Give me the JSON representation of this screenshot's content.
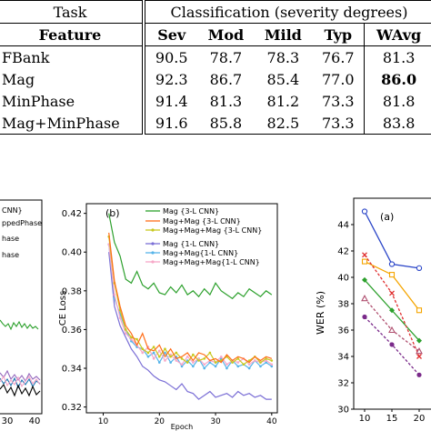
{
  "table": {
    "task_label": "Task",
    "task_header": "Classification (severity degrees)",
    "feature_label": "Feature",
    "columns": [
      "Sev",
      "Mod",
      "Mild",
      "Typ",
      "WAvg"
    ],
    "rows": [
      {
        "feature": "FBank",
        "values": [
          "90.5",
          "78.7",
          "78.3",
          "76.7",
          "81.3"
        ]
      },
      {
        "feature": "Mag",
        "values": [
          "92.3",
          "86.7",
          "85.4",
          "77.0",
          "86.0"
        ]
      },
      {
        "feature": "MinPhase",
        "values": [
          "91.4",
          "81.3",
          "81.2",
          "73.3",
          "81.8"
        ]
      },
      {
        "feature": "Mag+MinPhase",
        "values": [
          "91.6",
          "85.8",
          "82.5",
          "73.3",
          "83.8"
        ]
      }
    ]
  },
  "left_plot": {
    "legend": [
      "CNN}",
      "ppedPhase",
      "hase",
      "hase"
    ],
    "x_ticks": [
      "30",
      "40"
    ],
    "colors": {
      "green": "#2ca02c",
      "black": "#000000",
      "blue": "#1f77b4",
      "purple": "#9467bd",
      "pink": "#f4a3c6"
    }
  },
  "plot_b": {
    "label": "(b)",
    "xlabel": "Epoch",
    "ylabel": "CE Loss",
    "y_ticks": [
      "0.42",
      "0.40",
      "0.38",
      "0.36",
      "0.34",
      "0.32"
    ],
    "x_ticks": [
      "10",
      "20",
      "30",
      "40"
    ],
    "legend": [
      "Mag {3-L CNN}",
      "Mag+Mag {3-L CNN}",
      "Mag+Mag+Mag {3-L CNN}",
      "Mag {1-L CNN}",
      "Mag+Mag{1-L CNN}",
      "Mag+Mag+Mag{1-L CNN}"
    ],
    "colors": [
      "#2ca02c",
      "#ff6e1a",
      "#c8c820",
      "#7b6fd6",
      "#56b4e9",
      "#f7a8c8"
    ]
  },
  "plot_a": {
    "label": "(a)",
    "ylabel": "WER (%)",
    "y_ticks": [
      "44",
      "42",
      "40",
      "38",
      "36",
      "34",
      "32",
      "30"
    ],
    "x_ticks": [
      "10",
      "15",
      "20"
    ],
    "colors": [
      "#2a45c8",
      "#f5a500",
      "#2ca02c",
      "#e03030",
      "#b05070",
      "#7a2a8a"
    ]
  },
  "chart_data": [
    {
      "type": "line",
      "title": "(b)",
      "xlabel": "Epoch",
      "ylabel": "CE Loss",
      "ylim": [
        0.317,
        0.425
      ],
      "xlim": [
        7,
        41
      ],
      "grid": false,
      "legend_position": "top-right",
      "x": [
        11,
        12,
        13,
        14,
        15,
        16,
        17,
        18,
        19,
        20,
        21,
        22,
        23,
        24,
        25,
        26,
        27,
        28,
        29,
        30,
        31,
        32,
        33,
        34,
        35,
        36,
        37,
        38,
        39,
        40
      ],
      "series": [
        {
          "name": "Mag {3-L CNN}",
          "values": [
            0.42,
            0.405,
            0.398,
            0.386,
            0.384,
            0.39,
            0.383,
            0.381,
            0.384,
            0.379,
            0.378,
            0.382,
            0.379,
            0.383,
            0.378,
            0.38,
            0.377,
            0.381,
            0.378,
            0.384,
            0.38,
            0.378,
            0.376,
            0.379,
            0.377,
            0.381,
            0.379,
            0.377,
            0.38,
            0.378
          ]
        },
        {
          "name": "Mag+Mag {3-L CNN}",
          "values": [
            0.41,
            0.385,
            0.372,
            0.362,
            0.358,
            0.352,
            0.358,
            0.35,
            0.349,
            0.352,
            0.346,
            0.35,
            0.345,
            0.346,
            0.348,
            0.344,
            0.348,
            0.347,
            0.344,
            0.345,
            0.343,
            0.347,
            0.344,
            0.346,
            0.345,
            0.343,
            0.346,
            0.344,
            0.346,
            0.345
          ]
        },
        {
          "name": "Mag+Mag+Mag {3-L CNN}",
          "values": [
            0.408,
            0.384,
            0.37,
            0.36,
            0.356,
            0.355,
            0.35,
            0.348,
            0.351,
            0.346,
            0.35,
            0.346,
            0.348,
            0.345,
            0.343,
            0.347,
            0.344,
            0.345,
            0.348,
            0.343,
            0.344,
            0.346,
            0.343,
            0.345,
            0.342,
            0.344,
            0.346,
            0.343,
            0.345,
            0.344
          ]
        },
        {
          "name": "Mag {1-L CNN}",
          "values": [
            0.4,
            0.372,
            0.362,
            0.356,
            0.35,
            0.346,
            0.341,
            0.339,
            0.336,
            0.334,
            0.333,
            0.331,
            0.329,
            0.332,
            0.328,
            0.327,
            0.324,
            0.326,
            0.328,
            0.325,
            0.326,
            0.327,
            0.325,
            0.328,
            0.326,
            0.327,
            0.325,
            0.326,
            0.324,
            0.324
          ]
        },
        {
          "name": "Mag+Mag{1-L CNN}",
          "values": [
            0.404,
            0.376,
            0.368,
            0.36,
            0.354,
            0.351,
            0.35,
            0.346,
            0.348,
            0.343,
            0.348,
            0.343,
            0.346,
            0.341,
            0.344,
            0.341,
            0.345,
            0.34,
            0.343,
            0.341,
            0.345,
            0.34,
            0.344,
            0.341,
            0.342,
            0.34,
            0.344,
            0.341,
            0.343,
            0.341
          ]
        },
        {
          "name": "Mag+Mag+Mag{1-L CNN}",
          "values": [
            0.404,
            0.378,
            0.366,
            0.358,
            0.355,
            0.352,
            0.348,
            0.351,
            0.345,
            0.349,
            0.344,
            0.347,
            0.344,
            0.342,
            0.346,
            0.343,
            0.345,
            0.342,
            0.344,
            0.343,
            0.346,
            0.342,
            0.344,
            0.343,
            0.345,
            0.342,
            0.344,
            0.343,
            0.344,
            0.342
          ]
        }
      ]
    },
    {
      "type": "line",
      "title": "(a)",
      "ylabel": "WER (%)",
      "ylim": [
        30,
        46
      ],
      "xlim": [
        8,
        23
      ],
      "grid": false,
      "x": [
        10,
        15,
        20
      ],
      "series": [
        {
          "values": [
            45.0,
            41.0,
            40.7
          ]
        },
        {
          "values": [
            41.2,
            40.2,
            37.5
          ]
        },
        {
          "values": [
            39.8,
            37.5,
            35.2
          ]
        },
        {
          "values": [
            41.7,
            38.8,
            34.0
          ]
        },
        {
          "values": [
            38.4,
            36.0,
            34.4
          ]
        },
        {
          "values": [
            37.0,
            34.9,
            32.6
          ]
        }
      ]
    },
    {
      "type": "line",
      "title": "",
      "x": [
        30,
        40
      ],
      "grid": false,
      "series": []
    }
  ]
}
